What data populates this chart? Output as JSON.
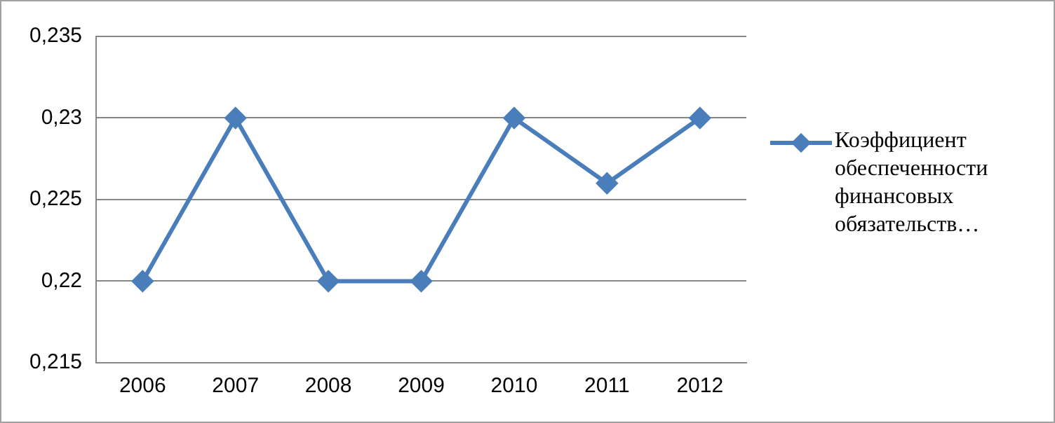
{
  "chart_data": {
    "type": "line",
    "categories": [
      "2006",
      "2007",
      "2008",
      "2009",
      "2010",
      "2011",
      "2012"
    ],
    "series": [
      {
        "name": "Коэффициент обеспеченности финансовых обязательств…",
        "color": "#4a7ebb",
        "values": [
          0.22,
          0.23,
          0.22,
          0.22,
          0.23,
          0.226,
          0.23
        ]
      }
    ],
    "ylim": [
      0.215,
      0.235
    ],
    "yticks": [
      {
        "value": 0.215,
        "label": "0,215"
      },
      {
        "value": 0.22,
        "label": "0,22"
      },
      {
        "value": 0.225,
        "label": "0,225"
      },
      {
        "value": 0.23,
        "label": "0,23"
      },
      {
        "value": 0.235,
        "label": "0,235"
      }
    ],
    "grid": "y",
    "legend": "right",
    "marker": "diamond",
    "line_style": "solid"
  }
}
